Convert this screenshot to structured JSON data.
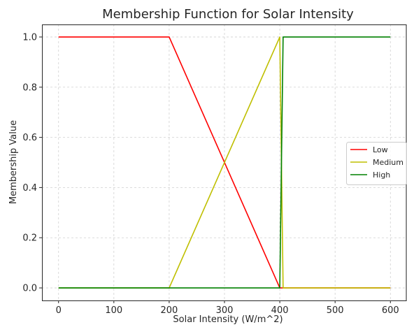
{
  "chart_data": {
    "type": "line",
    "title": "Membership Function for Solar Intensity",
    "xlabel": "Solar Intensity (W/m^2)",
    "ylabel": "Membership Value",
    "xlim": [
      -30,
      630
    ],
    "ylim": [
      -0.05,
      1.05
    ],
    "xticks": [
      0,
      100,
      200,
      300,
      400,
      500,
      600
    ],
    "yticks": [
      0.0,
      0.2,
      0.4,
      0.6,
      0.8,
      1.0
    ],
    "xtick_labels": [
      "0",
      "100",
      "200",
      "300",
      "400",
      "500",
      "600"
    ],
    "ytick_labels": [
      "0.0",
      "0.2",
      "0.4",
      "0.6",
      "0.8",
      "1.0"
    ],
    "grid": true,
    "legend_position": "center-right",
    "series": [
      {
        "name": "Low",
        "color": "#ff0000",
        "x": [
          0,
          200,
          400,
          406,
          600
        ],
        "y": [
          1,
          1,
          0,
          0,
          0
        ]
      },
      {
        "name": "Medium",
        "color": "#bfbf00",
        "x": [
          0,
          200,
          400,
          406,
          600
        ],
        "y": [
          0,
          0,
          1,
          0,
          0
        ]
      },
      {
        "name": "High",
        "color": "#008000",
        "x": [
          0,
          200,
          400,
          406,
          600
        ],
        "y": [
          0,
          0,
          0,
          1,
          1
        ]
      }
    ]
  }
}
